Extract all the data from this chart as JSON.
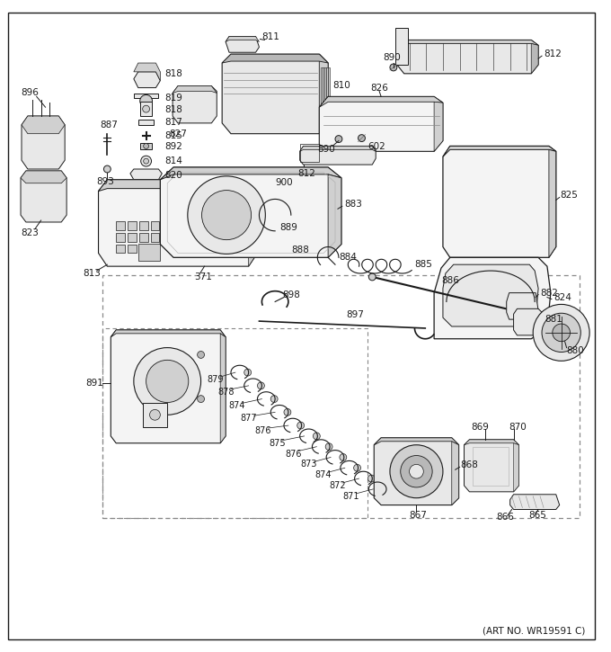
{
  "art_no": "(ART NO. WR19591 C)",
  "bg_color": "#ffffff",
  "lc": "#1a1a1a",
  "gray1": "#e8e8e8",
  "gray2": "#d0d0d0",
  "gray3": "#b8b8b8",
  "gray4": "#f4f4f4",
  "border_lw": 1.0,
  "fig_w": 6.8,
  "fig_h": 7.25,
  "dpi": 100
}
